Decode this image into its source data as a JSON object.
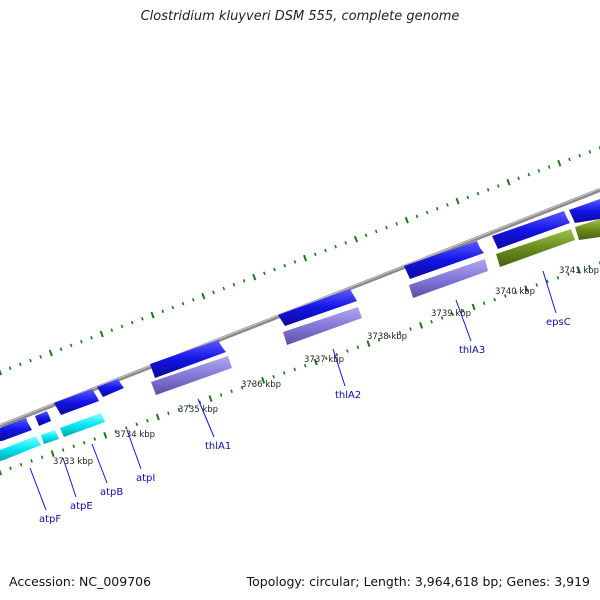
{
  "title": "Clostridium kluyveri DSM 555, complete genome",
  "footer": {
    "accession": "Accession: NC_009706",
    "stats": "Topology: circular; Length: 3,964,618 bp; Genes: 3,919"
  },
  "colors": {
    "backbone": "#8a8a8a",
    "tick": "#1a7a1a",
    "forward_gene": "#1414e6",
    "operon_cyan": "#00e8f0",
    "operon_lavender": "#8478d8",
    "operon_olive": "#6a8c1e",
    "label": "#0b0bb0"
  },
  "kbp_labels": [
    "3733 kbp",
    "3734 kbp",
    "3735 kbp",
    "3736 kbp",
    "3737 kbp",
    "3738 kbp",
    "3739 kbp",
    "3740 kbp",
    "3741 kbp"
  ],
  "genes": [
    "atpF",
    "atpE",
    "atpB",
    "atpI",
    "thlA1",
    "thlA2",
    "thlA3",
    "epsC"
  ]
}
